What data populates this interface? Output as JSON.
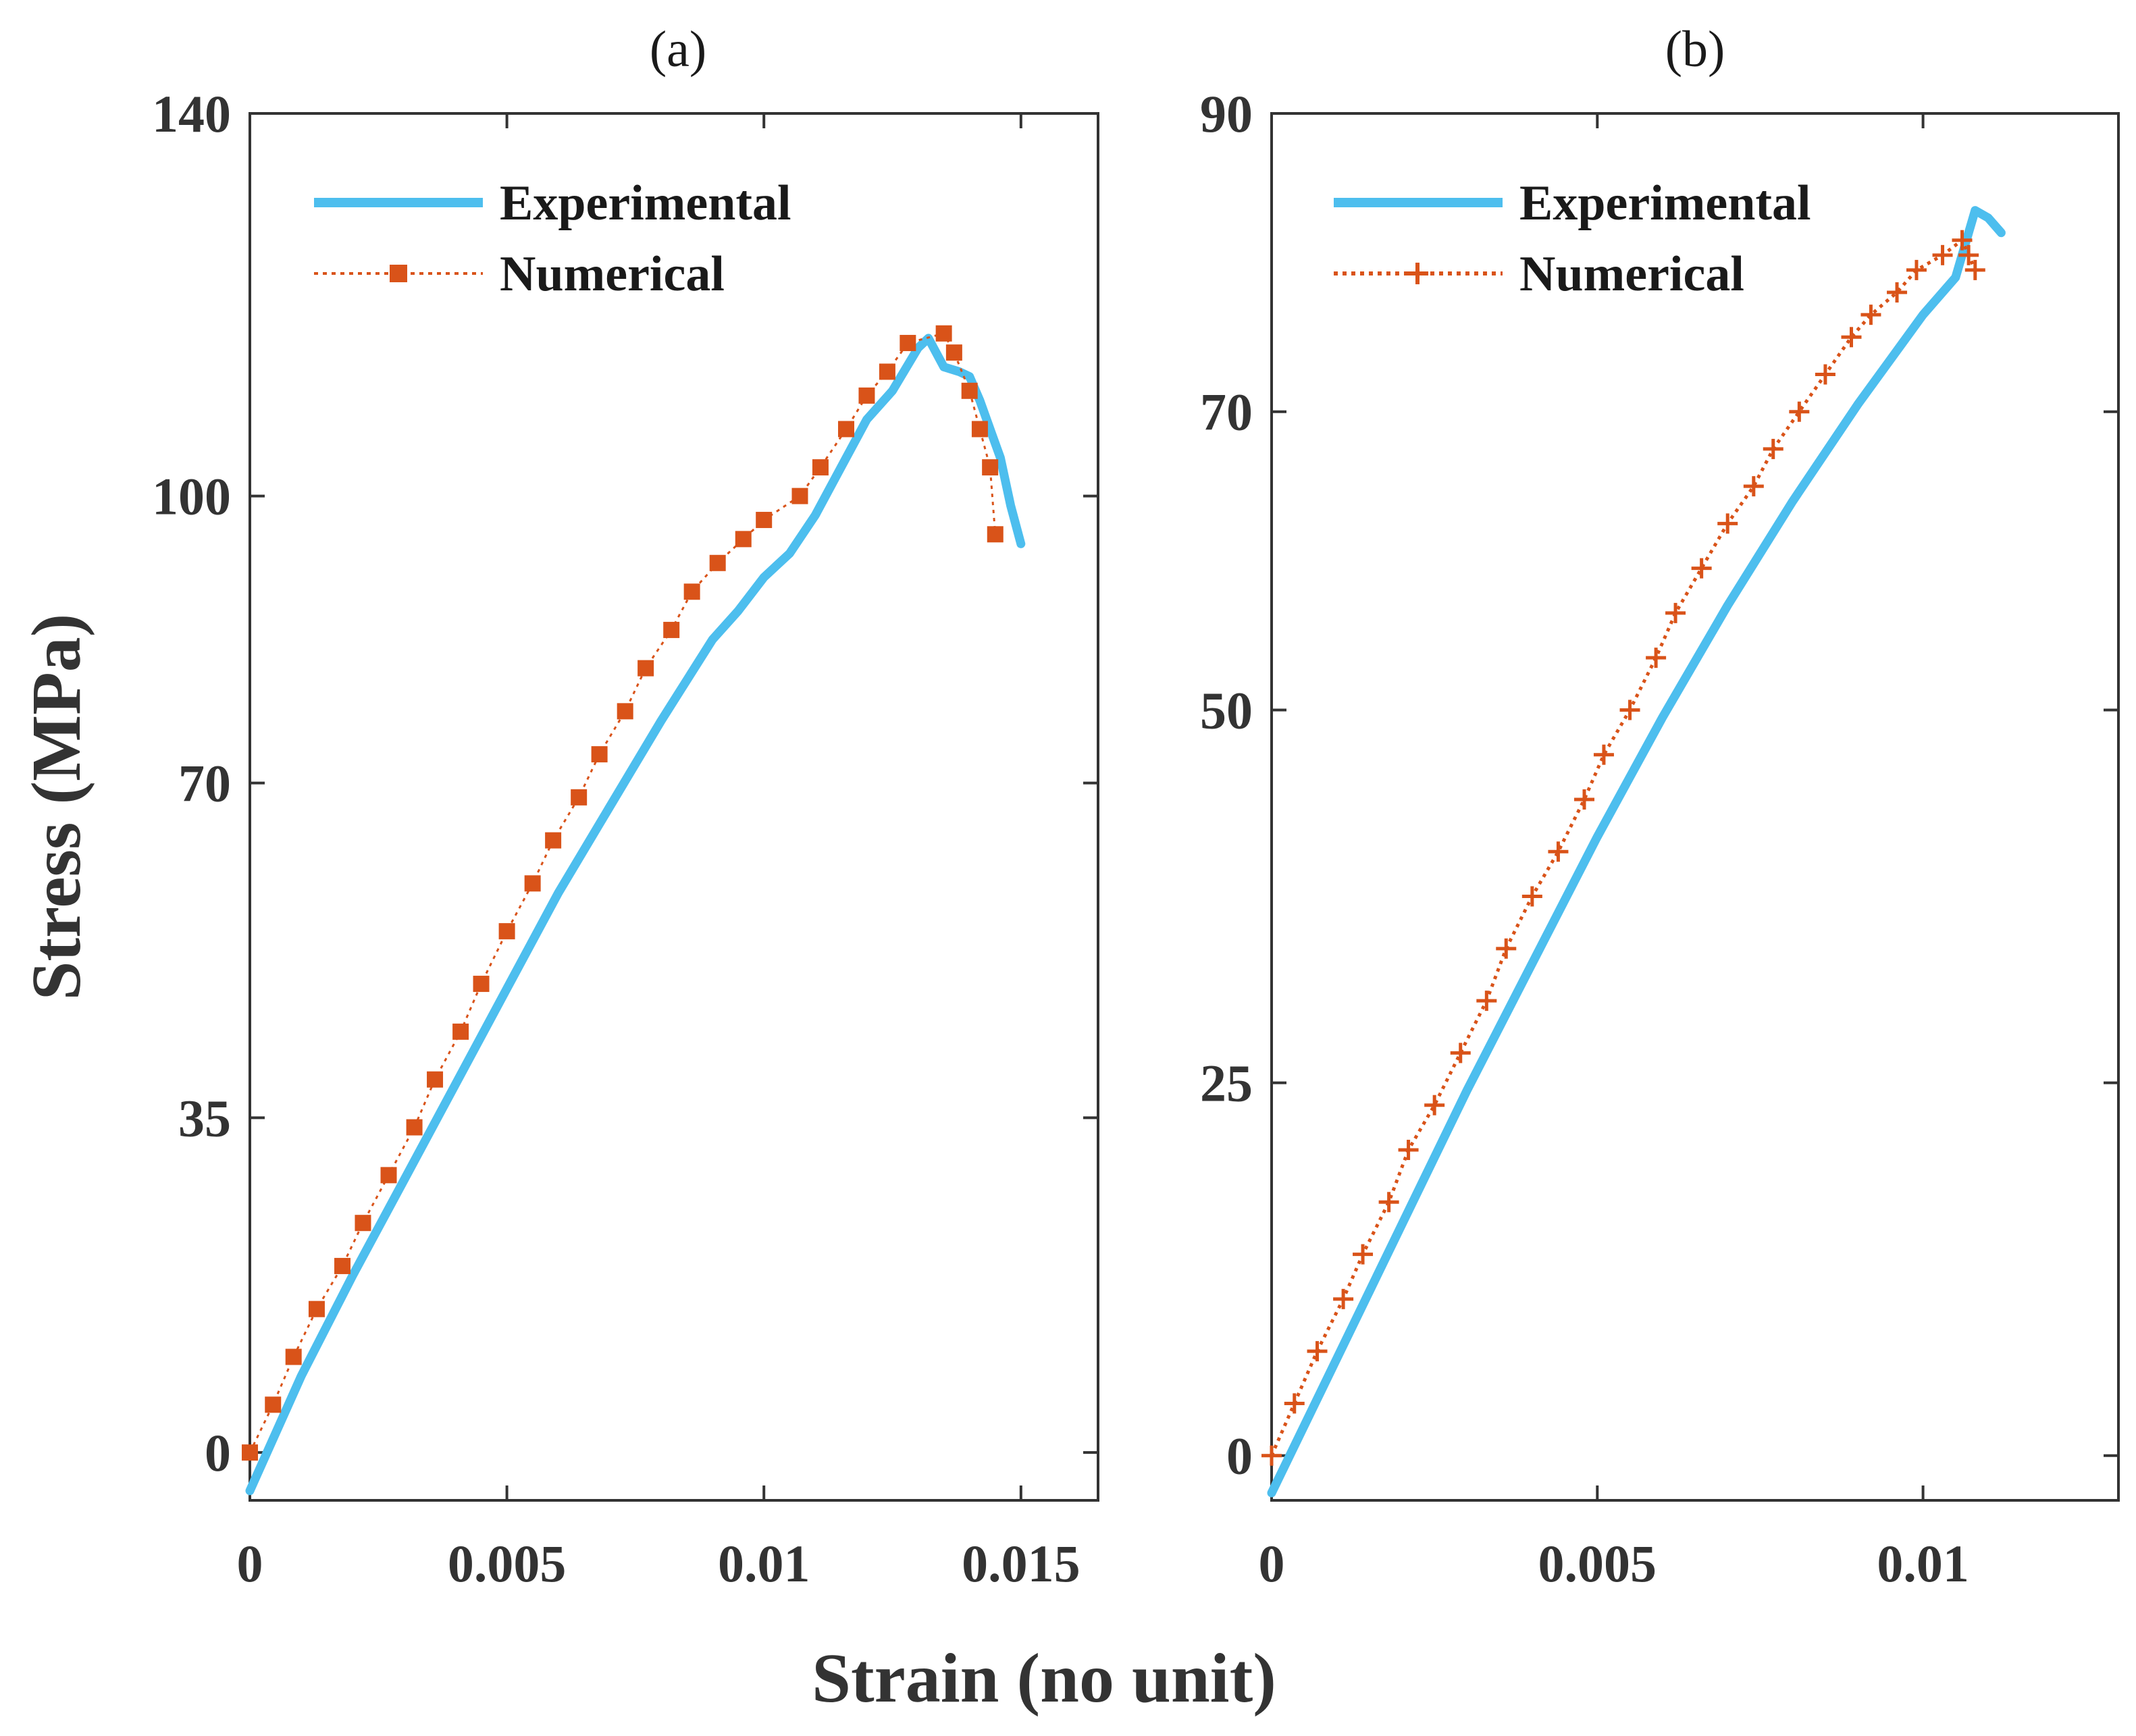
{
  "figure": {
    "ylabel": "Stress (MPa)",
    "xlabel": "Strain (no unit)"
  },
  "colors": {
    "experimental": "#4DBEEE",
    "numerical": "#D95319",
    "axis": "#333333"
  },
  "chart_data": [
    {
      "type": "line",
      "title": "(a)",
      "xlabel": "Strain (no unit)",
      "ylabel": "Stress (MPa)",
      "xlim": [
        0,
        0.0165
      ],
      "ylim": [
        -5,
        140
      ],
      "xticks": [
        0,
        0.005,
        0.01,
        0.015
      ],
      "xtick_labels": [
        "0",
        "0.005",
        "0.01",
        "0.015"
      ],
      "yticks": [
        0,
        35,
        70,
        100,
        140
      ],
      "ytick_labels": [
        "0",
        "35",
        "70",
        "100",
        "140"
      ],
      "legend": {
        "position": "top-left",
        "entries": [
          "Experimental",
          "Numerical"
        ]
      },
      "series": [
        {
          "name": "Experimental",
          "style": "solid",
          "x": [
            0,
            0.001,
            0.002,
            0.003,
            0.004,
            0.005,
            0.006,
            0.007,
            0.008,
            0.009,
            0.0095,
            0.01,
            0.0105,
            0.011,
            0.0115,
            0.012,
            0.0125,
            0.013,
            0.0132,
            0.0135,
            0.0138,
            0.014,
            0.0142,
            0.0144,
            0.0146,
            0.0148,
            0.015
          ],
          "y": [
            -4,
            8,
            18.5,
            28.5,
            38.5,
            48.5,
            58.5,
            67.5,
            76.5,
            85,
            88,
            91.5,
            94,
            98,
            103,
            108,
            111,
            115.5,
            116.5,
            113.5,
            113,
            112.5,
            110,
            107,
            104,
            99,
            95
          ]
        },
        {
          "name": "Numerical",
          "style": "dotted",
          "marker": "square",
          "x": [
            0,
            0.00045,
            0.00085,
            0.0013,
            0.0018,
            0.0022,
            0.0027,
            0.0032,
            0.0036,
            0.0041,
            0.0045,
            0.005,
            0.0055,
            0.0059,
            0.0064,
            0.0068,
            0.0073,
            0.0077,
            0.0082,
            0.0086,
            0.0091,
            0.0096,
            0.01,
            0.0107,
            0.0111,
            0.0116,
            0.012,
            0.0124,
            0.0128,
            0.0135,
            0.0137,
            0.014,
            0.0142,
            0.0144,
            0.0145
          ],
          "y": [
            0,
            5,
            10,
            15,
            19.5,
            24,
            29,
            34,
            39,
            44,
            49,
            54.5,
            59.5,
            64,
            68.5,
            73,
            77.5,
            82,
            86,
            90,
            93,
            95.5,
            97.5,
            100,
            103,
            107,
            110.5,
            113,
            116,
            117,
            115,
            111,
            107,
            103,
            96
          ]
        }
      ]
    },
    {
      "type": "line",
      "title": "(b)",
      "xlabel": "Strain (no unit)",
      "ylabel": "",
      "xlim": [
        0,
        0.013
      ],
      "ylim": [
        -3,
        90
      ],
      "xticks": [
        0,
        0.005,
        0.01
      ],
      "xtick_labels": [
        "0",
        "0.005",
        "0.01"
      ],
      "yticks": [
        0,
        25,
        50,
        70,
        90
      ],
      "ytick_labels": [
        "0",
        "25",
        "50",
        "70",
        "90"
      ],
      "legend": {
        "position": "top-left",
        "entries": [
          "Experimental",
          "Numerical"
        ]
      },
      "series": [
        {
          "name": "Experimental",
          "style": "solid",
          "x": [
            0,
            0.001,
            0.002,
            0.003,
            0.004,
            0.005,
            0.006,
            0.007,
            0.008,
            0.009,
            0.01,
            0.0105,
            0.0108,
            0.011,
            0.0112
          ],
          "y": [
            -2.5,
            6.5,
            15.5,
            24.5,
            33,
            41.5,
            49.5,
            57,
            64,
            70.5,
            76.5,
            79,
            83.5,
            83,
            82
          ]
        },
        {
          "name": "Numerical",
          "style": "dotted",
          "marker": "plus",
          "x": [
            0,
            0.00035,
            0.0007,
            0.0011,
            0.0014,
            0.0018,
            0.0021,
            0.0025,
            0.0029,
            0.0033,
            0.0036,
            0.004,
            0.0044,
            0.0048,
            0.0051,
            0.0055,
            0.0059,
            0.0062,
            0.0066,
            0.007,
            0.0074,
            0.0077,
            0.0081,
            0.0085,
            0.0089,
            0.0092,
            0.0096,
            0.0099,
            0.0103,
            0.0106,
            0.0107,
            0.0108
          ],
          "y": [
            0,
            3.5,
            7,
            10.5,
            13.5,
            17,
            20.5,
            23.5,
            27,
            30.5,
            34,
            37.5,
            40.5,
            44,
            47,
            50,
            53.5,
            56.5,
            59.5,
            62.5,
            65,
            67.5,
            70,
            72.5,
            75,
            76.5,
            78,
            79.5,
            80.5,
            81.5,
            80.5,
            79.5
          ]
        }
      ]
    }
  ]
}
